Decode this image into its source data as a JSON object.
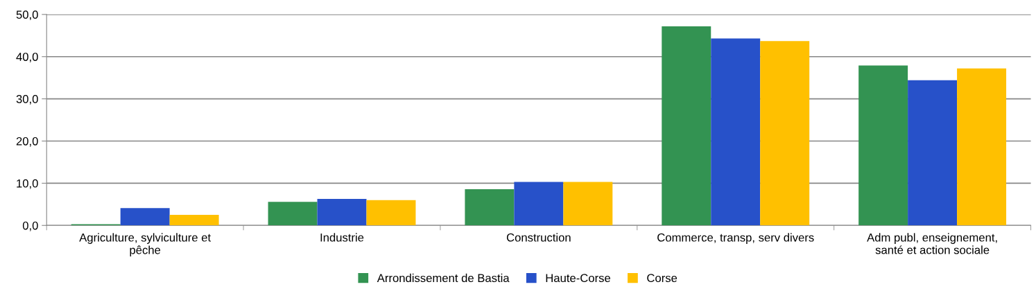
{
  "chart_data": {
    "type": "bar",
    "categories": [
      "Agriculture, sylviculture et pêche",
      "Industrie",
      "Construction",
      "Commerce, transp, serv divers",
      "Adm publ, enseignement, santé et action sociale"
    ],
    "series": [
      {
        "name": "Arrondissement de Bastia",
        "color": "#339352",
        "values": [
          0.3,
          5.6,
          8.6,
          47.2,
          37.9
        ]
      },
      {
        "name": "Haute-Corse",
        "color": "#2751c9",
        "values": [
          4.1,
          6.3,
          10.3,
          44.3,
          34.4
        ]
      },
      {
        "name": "Corse",
        "color": "#ffc000",
        "values": [
          2.5,
          6.0,
          10.3,
          43.7,
          37.2
        ]
      }
    ],
    "ylim": [
      0,
      50
    ],
    "yticks": [
      {
        "value": 0,
        "label": "0,0"
      },
      {
        "value": 10,
        "label": "10,0"
      },
      {
        "value": 20,
        "label": "20,0"
      },
      {
        "value": 30,
        "label": "30,0"
      },
      {
        "value": 40,
        "label": "40,0"
      },
      {
        "value": 50,
        "label": "50,0"
      }
    ],
    "grid": "y",
    "legend": "bottom"
  }
}
